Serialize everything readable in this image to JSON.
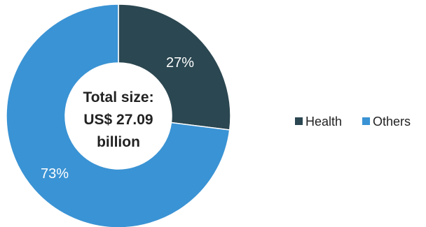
{
  "chart_data": {
    "type": "pie",
    "donut": true,
    "categories": [
      "Health",
      "Others"
    ],
    "values": [
      27,
      73
    ],
    "value_labels": [
      "27%",
      "73%"
    ],
    "colors": [
      "#2b4751",
      "#3a93d4"
    ],
    "center_text": [
      "Total size:",
      "US$ 27.09",
      "billion"
    ],
    "legend": {
      "placement": "right",
      "entries": [
        "Health",
        "Others"
      ]
    }
  }
}
